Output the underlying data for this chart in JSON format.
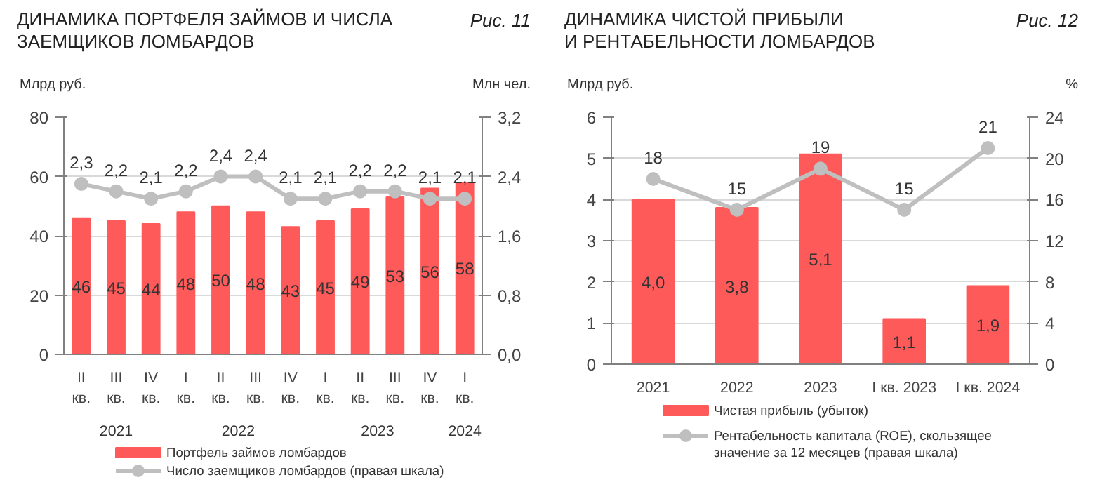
{
  "chart_data": [
    {
      "type": "bar",
      "title": "ДИНАМИКА ПОРТФЕЛЯ ЗАЙМОВ И ЧИСЛА\nЗАЕМЩИКОВ ЛОМБАРДОВ",
      "subtitle": "Рис. 11",
      "ylabel": "Млрд руб.",
      "y2label": "Млн чел.",
      "categories": [
        "II\nкв.",
        "III\nкв.",
        "IV\nкв.",
        "I\nкв.",
        "II\nкв.",
        "III\nкв.",
        "IV\nкв.",
        "I\nкв.",
        "II\nкв.",
        "III\nкв.",
        "IV\nкв.",
        "I\nкв."
      ],
      "annotations": [
        "2021",
        "2022",
        "2023",
        "2024"
      ],
      "ylim": [
        0,
        80
      ],
      "yticks": [
        0,
        20,
        40,
        60,
        80
      ],
      "y2lim": [
        0,
        3.2
      ],
      "y2ticks": [
        {
          "value": 0,
          "label": "0,0"
        },
        {
          "value": 0.8,
          "label": "0,8"
        },
        {
          "value": 1.6,
          "label": "1,6"
        },
        {
          "value": 2.4,
          "label": "2,4"
        },
        {
          "value": 3.2,
          "label": "3,2"
        }
      ],
      "grid": "y",
      "legend": "bottom",
      "marker": "circle",
      "series": [
        {
          "name": "Портфель займов ломбардов",
          "color": "#ff5a5a",
          "values": [
            46,
            45,
            44,
            48,
            50,
            48,
            43,
            45,
            49,
            53,
            56,
            58
          ],
          "value_labels": [
            "46",
            "45",
            "44",
            "48",
            "50",
            "48",
            "43",
            "45",
            "49",
            "53",
            "56",
            "58"
          ]
        },
        {
          "name": "Число заемщиков ломбардов (правая шкала)",
          "type": "line",
          "axis": "y2",
          "color": "#bfbfbf",
          "values": [
            2.3,
            2.2,
            2.1,
            2.2,
            2.4,
            2.4,
            2.1,
            2.1,
            2.2,
            2.2,
            2.1,
            2.1
          ],
          "value_labels": [
            "2,3",
            "2,2",
            "2,1",
            "2,2",
            "2,4",
            "2,4",
            "2,1",
            "2,1",
            "2,2",
            "2,2",
            "2,1",
            "2,1"
          ]
        }
      ]
    },
    {
      "type": "bar",
      "title": "ДИНАМИКА ЧИСТОЙ ПРИБЫЛИ\nИ РЕНТАБЕЛЬНОСТИ ЛОМБАРДОВ",
      "subtitle": "Рис. 12",
      "ylabel": "Млрд руб.",
      "y2label": "%",
      "categories": [
        "2021",
        "2022",
        "2023",
        "I кв. 2023",
        "I кв. 2024"
      ],
      "ylim": [
        0,
        6
      ],
      "yticks": [
        0,
        1,
        2,
        3,
        4,
        5,
        6
      ],
      "y2lim": [
        0,
        24
      ],
      "y2ticks": [
        0,
        4,
        8,
        12,
        16,
        20,
        24
      ],
      "grid": "y",
      "legend": "bottom",
      "marker": "circle",
      "series": [
        {
          "name": "Чистая прибыль (убыток)",
          "color": "#ff5a5a",
          "values": [
            4.0,
            3.8,
            5.1,
            1.1,
            1.9
          ],
          "value_labels": [
            "4,0",
            "3,8",
            "5,1",
            "1,1",
            "1,9"
          ]
        },
        {
          "name": "Рентабельность капитала (ROE), скользящее\nзначение за 12 месяцев (правая шкала)",
          "type": "line",
          "axis": "y2",
          "color": "#bfbfbf",
          "values": [
            18,
            15,
            19,
            15,
            21
          ],
          "value_labels": [
            "18",
            "15",
            "19",
            "15",
            "21"
          ]
        }
      ]
    }
  ]
}
